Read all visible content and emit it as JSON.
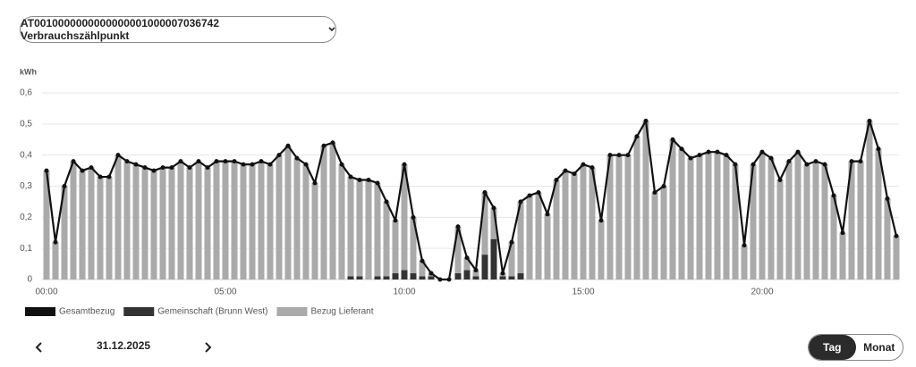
{
  "meter_selector": "AT0010000000000000001000007036742 Verbrauchszählpunkt",
  "date": "31.12.2025",
  "view_toggle": [
    "Tag",
    "Monat"
  ],
  "chart_data": {
    "type": "bar",
    "stacked": true,
    "y_label": "kWh",
    "grid": true,
    "legend": "bottom-left",
    "ylim": [
      0,
      0.6
    ],
    "yticks": [
      0,
      {
        "value": 0.1,
        "label": "0,1"
      },
      {
        "value": 0.2,
        "label": "0,2"
      },
      {
        "value": 0.3,
        "label": "0,3"
      },
      {
        "value": 0.4,
        "label": "0,4"
      },
      {
        "value": 0.5,
        "label": "0,5"
      },
      {
        "value": 0.6,
        "label": "0,6"
      }
    ],
    "categories": [
      "00:00",
      null,
      null,
      null,
      null,
      null,
      null,
      null,
      null,
      null,
      null,
      null,
      null,
      null,
      null,
      null,
      null,
      null,
      null,
      null,
      "05:00",
      null,
      null,
      null,
      null,
      null,
      null,
      null,
      null,
      null,
      null,
      null,
      null,
      null,
      null,
      null,
      null,
      null,
      null,
      null,
      "10:00",
      null,
      null,
      null,
      null,
      null,
      null,
      null,
      null,
      null,
      null,
      null,
      null,
      null,
      null,
      null,
      null,
      null,
      null,
      null,
      "15:00",
      null,
      null,
      null,
      null,
      null,
      null,
      null,
      null,
      null,
      null,
      null,
      null,
      null,
      null,
      null,
      null,
      null,
      null,
      null,
      "20:00",
      null,
      null,
      null,
      null,
      null,
      null,
      null,
      null,
      null,
      null,
      null,
      null,
      null,
      null,
      null
    ],
    "series": [
      {
        "name": "Gesamtbezug",
        "type": "line",
        "color": "#111111",
        "values": [
          0.35,
          0.12,
          0.3,
          0.38,
          0.35,
          0.36,
          0.33,
          0.33,
          0.4,
          0.38,
          0.37,
          0.36,
          0.35,
          0.36,
          0.36,
          0.38,
          0.36,
          0.38,
          0.36,
          0.38,
          0.38,
          0.38,
          0.37,
          0.37,
          0.38,
          0.37,
          0.4,
          0.43,
          0.39,
          0.37,
          0.31,
          0.43,
          0.44,
          0.37,
          0.33,
          0.32,
          0.32,
          0.31,
          0.25,
          0.19,
          0.37,
          0.2,
          0.06,
          0.02,
          0,
          0,
          0.17,
          0.07,
          0.03,
          0.28,
          0.23,
          0.02,
          0.12,
          0.25,
          0.27,
          0.28,
          0.21,
          0.32,
          0.35,
          0.34,
          0.37,
          0.36,
          0.19,
          0.4,
          0.4,
          0.4,
          0.46,
          0.51,
          0.28,
          0.3,
          0.45,
          0.42,
          0.39,
          0.4,
          0.41,
          0.41,
          0.4,
          0.37,
          0.11,
          0.37,
          0.41,
          0.39,
          0.32,
          0.38,
          0.41,
          0.37,
          0.38,
          0.37,
          0.27,
          0.15,
          0.38,
          0.38,
          0.51,
          0.42,
          0.26,
          0.14
        ]
      },
      {
        "name": "Gemeinschaft (Brunn West)",
        "type": "bar",
        "color": "#333333",
        "values": [
          0,
          0,
          0,
          0,
          0,
          0,
          0,
          0,
          0,
          0,
          0,
          0,
          0,
          0,
          0,
          0,
          0,
          0,
          0,
          0,
          0,
          0,
          0,
          0,
          0,
          0,
          0,
          0,
          0,
          0,
          0,
          0,
          0,
          0,
          0.01,
          0.01,
          0,
          0.01,
          0.01,
          0.02,
          0.03,
          0.02,
          0.01,
          0.01,
          0,
          0,
          0.02,
          0.03,
          0.01,
          0.08,
          0.13,
          0.01,
          0.01,
          0.02,
          0,
          0,
          0,
          0,
          0,
          0,
          0,
          0,
          0,
          0,
          0,
          0,
          0,
          0,
          0,
          0,
          0,
          0,
          0,
          0,
          0,
          0,
          0,
          0,
          0,
          0,
          0,
          0,
          0,
          0,
          0,
          0,
          0,
          0,
          0,
          0,
          0,
          0,
          0,
          0,
          0,
          0
        ]
      },
      {
        "name": "Bezug Lieferant",
        "type": "bar",
        "color": "#aaaaaa",
        "values": [
          0.35,
          0.12,
          0.3,
          0.38,
          0.35,
          0.36,
          0.33,
          0.33,
          0.4,
          0.38,
          0.37,
          0.36,
          0.35,
          0.36,
          0.36,
          0.38,
          0.36,
          0.38,
          0.36,
          0.38,
          0.38,
          0.38,
          0.37,
          0.37,
          0.38,
          0.37,
          0.4,
          0.43,
          0.39,
          0.37,
          0.31,
          0.43,
          0.44,
          0.37,
          0.32,
          0.31,
          0.32,
          0.3,
          0.24,
          0.17,
          0.34,
          0.18,
          0.05,
          0.01,
          0,
          0,
          0.15,
          0.04,
          0.02,
          0.2,
          0.1,
          0.01,
          0.11,
          0.23,
          0.27,
          0.28,
          0.21,
          0.32,
          0.35,
          0.34,
          0.37,
          0.36,
          0.19,
          0.4,
          0.4,
          0.4,
          0.46,
          0.51,
          0.28,
          0.3,
          0.45,
          0.42,
          0.39,
          0.4,
          0.41,
          0.41,
          0.4,
          0.37,
          0.11,
          0.37,
          0.41,
          0.39,
          0.32,
          0.38,
          0.41,
          0.37,
          0.38,
          0.37,
          0.27,
          0.15,
          0.38,
          0.38,
          0.51,
          0.42,
          0.26,
          0.14
        ]
      }
    ]
  }
}
